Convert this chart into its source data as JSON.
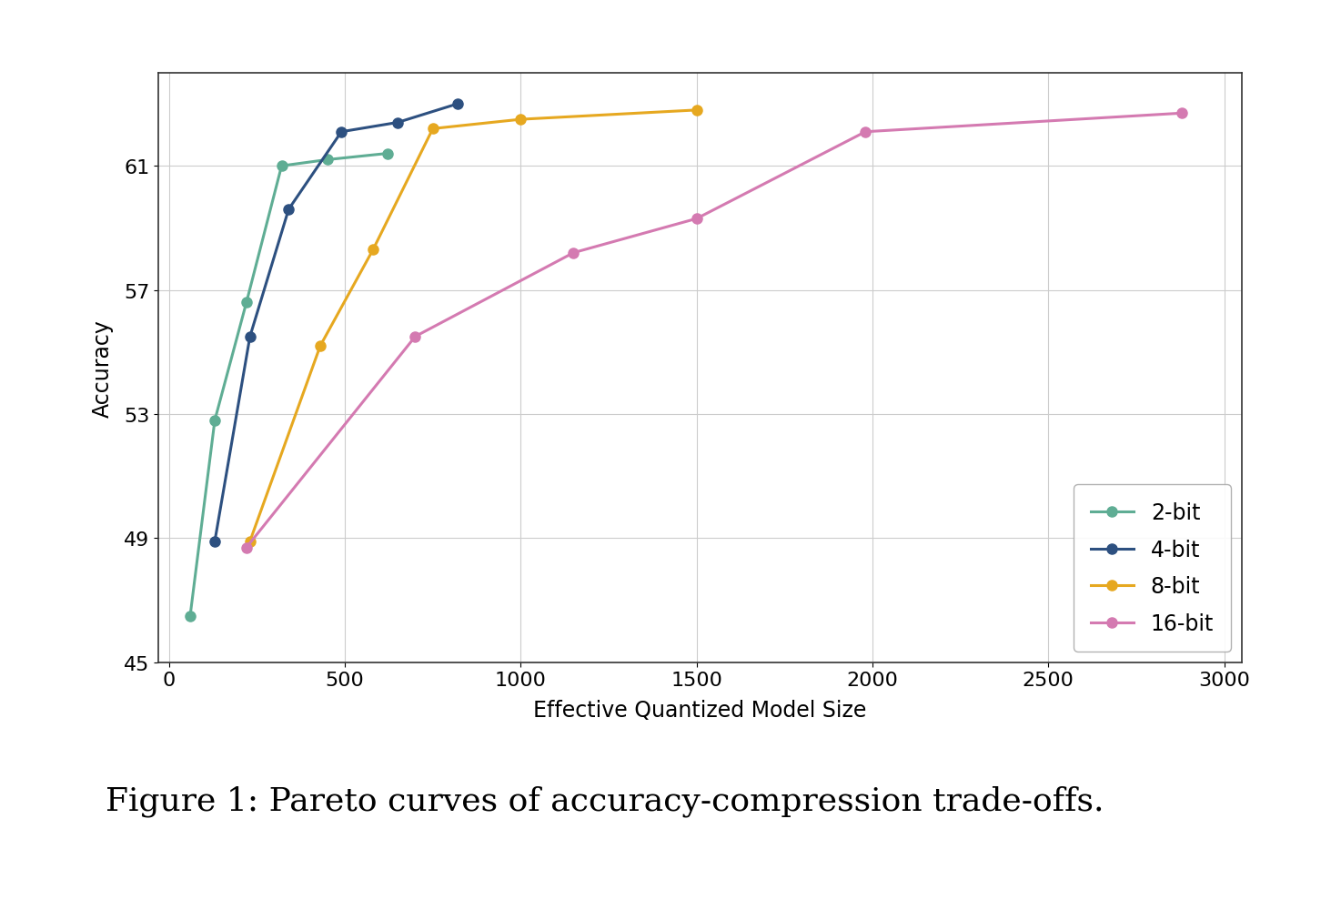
{
  "series": [
    {
      "label": "2-bit",
      "color": "#5fad94",
      "x": [
        60,
        130,
        220,
        320,
        450,
        620
      ],
      "y": [
        46.5,
        52.8,
        56.6,
        61.0,
        61.2,
        61.4
      ]
    },
    {
      "label": "4-bit",
      "color": "#2d5080",
      "x": [
        130,
        230,
        340,
        490,
        650,
        820
      ],
      "y": [
        48.9,
        55.5,
        59.6,
        62.1,
        62.4,
        63.0
      ]
    },
    {
      "label": "8-bit",
      "color": "#e6a820",
      "x": [
        230,
        430,
        580,
        750,
        1000,
        1500
      ],
      "y": [
        48.9,
        55.2,
        58.3,
        62.2,
        62.5,
        62.8
      ]
    },
    {
      "label": "16-bit",
      "color": "#d47ab1",
      "x": [
        220,
        700,
        1150,
        1500,
        1980,
        2880
      ],
      "y": [
        48.7,
        55.5,
        58.2,
        59.3,
        62.1,
        62.7
      ]
    }
  ],
  "xlabel": "Effective Quantized Model Size",
  "ylabel": "Accuracy",
  "xlim": [
    -30,
    3050
  ],
  "ylim": [
    45,
    64
  ],
  "yticks": [
    45,
    49,
    53,
    57,
    61
  ],
  "xticks": [
    0,
    500,
    1000,
    1500,
    2000,
    2500,
    3000
  ],
  "grid": true,
  "legend_loc": "lower right",
  "caption": "Figure 1: Pareto curves of accuracy-compression trade-offs.",
  "caption_fontsize": 26,
  "axis_label_fontsize": 17,
  "tick_fontsize": 16,
  "legend_fontsize": 17,
  "marker": "o",
  "linewidth": 2.2,
  "markersize": 8,
  "background_color": "#ffffff"
}
